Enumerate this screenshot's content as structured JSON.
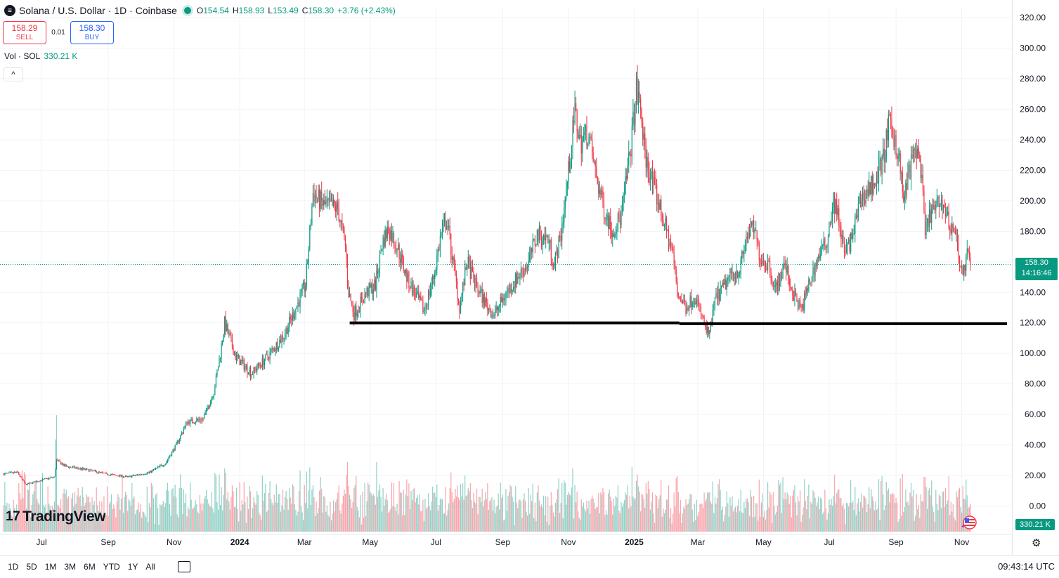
{
  "header": {
    "title": "Solana / U.S. Dollar · 1D · Coinbase",
    "open_label": "O",
    "open": "154.54",
    "high_label": "H",
    "high": "158.93",
    "low_label": "L",
    "low": "153.49",
    "close_label": "C",
    "close": "158.30",
    "change": "+3.76 (+2.43%)"
  },
  "trade": {
    "sell_price": "158.29",
    "sell_label": "SELL",
    "spread": "0.01",
    "buy_price": "158.30",
    "buy_label": "BUY"
  },
  "volume": {
    "label": "Vol · SOL",
    "value": "330.21 K"
  },
  "collapse_glyph": "^",
  "logo": {
    "mark": "17",
    "text": "TradingView"
  },
  "price_tag": {
    "price": "158.30",
    "countdown": "14:16:46"
  },
  "volume_tag": "330.21 K",
  "timeframes": [
    "1D",
    "5D",
    "1M",
    "3M",
    "6M",
    "YTD",
    "1Y",
    "All"
  ],
  "clock": "09:43:14 UTC",
  "colors": {
    "up": "#089981",
    "down": "#f23645",
    "grid": "#f0f3fa",
    "line": "#000000"
  },
  "chart_data": {
    "type": "candlestick",
    "title": "Solana / U.S. Dollar · 1D · Coinbase",
    "ylim": [
      -10,
      325
    ],
    "y_ticks": [
      0,
      20,
      40,
      60,
      80,
      100,
      120,
      140,
      160,
      180,
      200,
      220,
      240,
      260,
      280,
      300,
      320
    ],
    "y_tick_labels": [
      "0.00",
      "20.00",
      "40.00",
      "60.00",
      "80.00",
      "100.00",
      "120.00",
      "140.00",
      "160.00",
      "180.00",
      "200.00",
      "220.00",
      "240.00",
      "260.00",
      "280.00",
      "300.00",
      "320.00"
    ],
    "x_tick_labels": [
      "Jul",
      "Sep",
      "Nov",
      "2024",
      "Mar",
      "May",
      "Jul",
      "Sep",
      "Nov",
      "2025",
      "Mar",
      "May",
      "Jul",
      "Sep",
      "Nov"
    ],
    "x_tick_day_index": [
      0,
      62,
      123,
      184,
      244,
      305,
      366,
      428,
      489,
      550,
      609,
      670,
      731,
      793,
      854
    ],
    "day_count": 870,
    "last_price": 158.3,
    "support_line": [
      {
        "start_day": 286,
        "end_day": 592,
        "price": 120
      },
      {
        "start_day": 592,
        "end_day": 896,
        "price": 119.5
      }
    ],
    "price_path": [
      [
        -35,
        21
      ],
      [
        -22,
        22
      ],
      [
        -15,
        14
      ],
      [
        0,
        17
      ],
      [
        12,
        19
      ],
      [
        14,
        30
      ],
      [
        22,
        26
      ],
      [
        40,
        24
      ],
      [
        60,
        21
      ],
      [
        80,
        19
      ],
      [
        100,
        22
      ],
      [
        115,
        28
      ],
      [
        125,
        40
      ],
      [
        135,
        55
      ],
      [
        150,
        57
      ],
      [
        160,
        75
      ],
      [
        166,
        100
      ],
      [
        170,
        120
      ],
      [
        180,
        98
      ],
      [
        195,
        87
      ],
      [
        210,
        98
      ],
      [
        225,
        112
      ],
      [
        235,
        128
      ],
      [
        245,
        145
      ],
      [
        248,
        170
      ],
      [
        252,
        205
      ],
      [
        262,
        197
      ],
      [
        275,
        195
      ],
      [
        282,
        170
      ],
      [
        285,
        140
      ],
      [
        290,
        126
      ],
      [
        302,
        140
      ],
      [
        310,
        145
      ],
      [
        316,
        172
      ],
      [
        322,
        182
      ],
      [
        330,
        170
      ],
      [
        340,
        148
      ],
      [
        355,
        128
      ],
      [
        364,
        150
      ],
      [
        370,
        175
      ],
      [
        376,
        188
      ],
      [
        383,
        155
      ],
      [
        388,
        130
      ],
      [
        395,
        160
      ],
      [
        402,
        146
      ],
      [
        412,
        133
      ],
      [
        420,
        125
      ],
      [
        430,
        138
      ],
      [
        440,
        148
      ],
      [
        452,
        160
      ],
      [
        460,
        178
      ],
      [
        470,
        175
      ],
      [
        476,
        158
      ],
      [
        482,
        178
      ],
      [
        490,
        225
      ],
      [
        495,
        258
      ],
      [
        500,
        238
      ],
      [
        507,
        245
      ],
      [
        515,
        215
      ],
      [
        522,
        195
      ],
      [
        530,
        180
      ],
      [
        538,
        190
      ],
      [
        546,
        230
      ],
      [
        552,
        272
      ],
      [
        556,
        260
      ],
      [
        560,
        230
      ],
      [
        566,
        214
      ],
      [
        570,
        205
      ],
      [
        574,
        195
      ],
      [
        580,
        180
      ],
      [
        586,
        165
      ],
      [
        590,
        140
      ],
      [
        598,
        130
      ],
      [
        606,
        138
      ],
      [
        612,
        126
      ],
      [
        616,
        116
      ],
      [
        620,
        112
      ],
      [
        625,
        135
      ],
      [
        632,
        142
      ],
      [
        640,
        152
      ],
      [
        648,
        155
      ],
      [
        655,
        178
      ],
      [
        661,
        182
      ],
      [
        667,
        163
      ],
      [
        675,
        158
      ],
      [
        681,
        142
      ],
      [
        690,
        158
      ],
      [
        697,
        140
      ],
      [
        705,
        128
      ],
      [
        712,
        145
      ],
      [
        720,
        162
      ],
      [
        728,
        172
      ],
      [
        735,
        200
      ],
      [
        740,
        188
      ],
      [
        745,
        165
      ],
      [
        752,
        175
      ],
      [
        760,
        200
      ],
      [
        768,
        208
      ],
      [
        775,
        215
      ],
      [
        782,
        230
      ],
      [
        786,
        248
      ],
      [
        790,
        245
      ],
      [
        795,
        232
      ],
      [
        800,
        200
      ],
      [
        806,
        222
      ],
      [
        812,
        235
      ],
      [
        816,
        222
      ],
      [
        820,
        178
      ],
      [
        825,
        192
      ],
      [
        830,
        195
      ],
      [
        836,
        200
      ],
      [
        842,
        185
      ],
      [
        848,
        180
      ],
      [
        852,
        162
      ],
      [
        855,
        150
      ],
      [
        859,
        165
      ],
      [
        862,
        158.3
      ]
    ]
  }
}
